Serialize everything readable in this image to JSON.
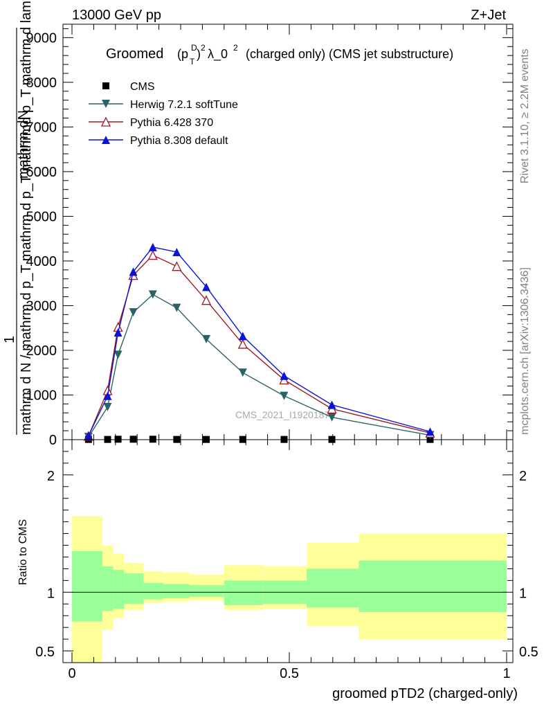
{
  "header": {
    "left": "13000 GeV pp",
    "right": "Z+Jet"
  },
  "side_labels": {
    "rivet": "Rivet 3.1.10, ≥ 2.2M events",
    "mcplots": "mcplots.cern.ch [arXiv:1306.3436]"
  },
  "chart_data": [
    {
      "type": "line",
      "title": "Groomed (p_T^D)^2 λ_0^2 (charged only) (CMS jet substructure)",
      "title_parts": {
        "word": "Groomed",
        "rest": "λ_0",
        "tail": "(charged only) (CMS jet substructure)"
      },
      "ylabel_lines": [
        "1",
        "mathrm dN / mathrm d p_T mathrm d p_T mathrmd p_T mathrm d lambda",
        "mathrm dN"
      ],
      "ylabel_parts": {
        "one": "1",
        "denominator": "mathrm d N / mathrm d p_T mathrm d p_T mathrmd p_T mathrm d lambda",
        "numerator": "mathrm dN"
      },
      "watermark": "CMS_2021_I1920187",
      "xlim": [
        0,
        1
      ],
      "ylim": [
        0,
        9300
      ],
      "y_ticks": [
        0,
        1000,
        2000,
        3000,
        4000,
        5000,
        6000,
        7000,
        8000,
        9000
      ],
      "y_tick_labels": [
        "0",
        "1000",
        "2000",
        "3000",
        "4000",
        "5000",
        "6000",
        "7000",
        "8000",
        "9000"
      ],
      "legend_position": "top-left",
      "series": [
        {
          "name": "CMS",
          "color": "#000000",
          "marker": "square",
          "x": [
            0.038,
            0.082,
            0.106,
            0.141,
            0.186,
            0.241,
            0.309,
            0.393,
            0.488,
            0.598,
            0.824
          ],
          "y": [
            5,
            5,
            10,
            10,
            10,
            5,
            5,
            5,
            5,
            5,
            5
          ]
        },
        {
          "name": "Herwig 7.2.1 softTune",
          "color": "#2a6266",
          "marker": "triangle-down",
          "x": [
            0.038,
            0.082,
            0.106,
            0.141,
            0.186,
            0.241,
            0.309,
            0.393,
            0.488,
            0.598,
            0.824
          ],
          "y": [
            60,
            730,
            1900,
            2850,
            3250,
            2950,
            2250,
            1500,
            980,
            500,
            100
          ]
        },
        {
          "name": "Pythia 6.428 370",
          "color": "#9e1a23",
          "marker": "triangle-open",
          "x": [
            0.038,
            0.082,
            0.106,
            0.141,
            0.186,
            0.241,
            0.309,
            0.393,
            0.488,
            0.598,
            0.824
          ],
          "y": [
            80,
            1100,
            2520,
            3680,
            4130,
            3880,
            3120,
            2140,
            1340,
            690,
            150
          ]
        },
        {
          "name": "Pythia 8.308 default",
          "color": "#0a12d8",
          "marker": "triangle-up",
          "x": [
            0.038,
            0.082,
            0.106,
            0.141,
            0.186,
            0.241,
            0.309,
            0.393,
            0.488,
            0.598,
            0.824
          ],
          "y": [
            90,
            980,
            2400,
            3760,
            4310,
            4200,
            3420,
            2320,
            1430,
            780,
            180
          ]
        }
      ]
    },
    {
      "type": "area",
      "ylabel": "Ratio to CMS",
      "xlabel": "groomed pTD2 (charged-only)",
      "xlim": [
        0,
        1
      ],
      "ylim": [
        0.4,
        2.3
      ],
      "x_ticks": [
        0,
        0.5,
        1
      ],
      "x_tick_labels": [
        "0",
        "0.5",
        "1"
      ],
      "y_ticks": [
        0.5,
        1,
        2
      ],
      "y_tick_labels": [
        "0.5",
        "1",
        "2"
      ],
      "bins": [
        0,
        0.07,
        0.095,
        0.12,
        0.165,
        0.21,
        0.27,
        0.35,
        0.44,
        0.54,
        0.66,
        1.0
      ],
      "band_inner": {
        "color": "#99ff99",
        "lower": [
          0.75,
          0.84,
          0.86,
          0.9,
          0.94,
          0.95,
          0.96,
          0.89,
          0.9,
          0.87,
          0.83
        ],
        "upper": [
          1.35,
          1.22,
          1.19,
          1.16,
          1.08,
          1.07,
          1.06,
          1.1,
          1.1,
          1.2,
          1.27
        ]
      },
      "band_outer": {
        "color": "#ffff99",
        "lower": [
          0.38,
          0.68,
          0.78,
          0.85,
          0.91,
          0.92,
          0.93,
          0.85,
          0.86,
          0.71,
          0.6
        ],
        "upper": [
          1.65,
          1.4,
          1.33,
          1.25,
          1.18,
          1.17,
          1.15,
          1.23,
          1.22,
          1.42,
          1.5
        ]
      },
      "reference_line": 1
    }
  ]
}
